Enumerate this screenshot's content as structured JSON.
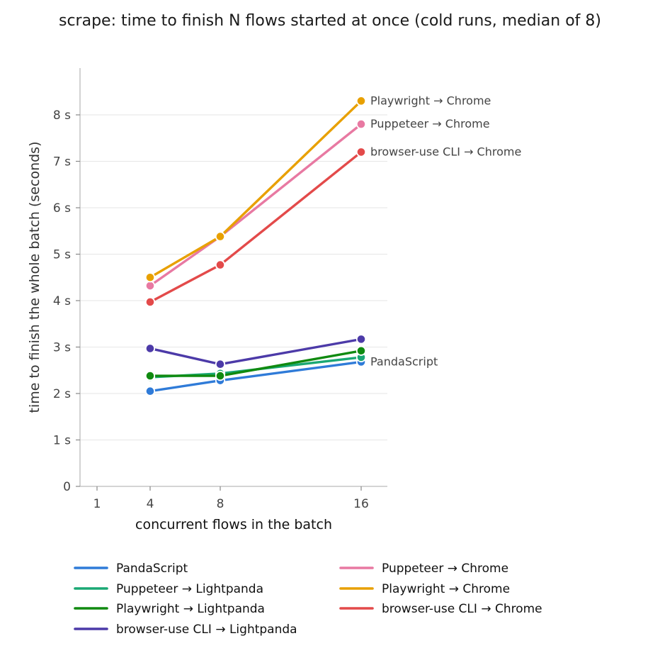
{
  "chart_data": {
    "type": "line",
    "title": "scrape: time to finish N flows started at once (cold runs, median of 8)",
    "xlabel": "concurrent flows in the batch",
    "ylabel": "time to finish the whole batch (seconds)",
    "x_ticks": [
      "1",
      "4",
      "8",
      "16"
    ],
    "y_ticks": [
      "0",
      "1 s",
      "2 s",
      "3 s",
      "4 s",
      "5 s",
      "6 s",
      "7 s",
      "8 s"
    ],
    "ylim": [
      0,
      9
    ],
    "legend_position": "bottom",
    "grid": "horizontal",
    "series": [
      {
        "name": "PandaScript",
        "color": "#2f7bd8",
        "x": [
          4,
          8,
          16
        ],
        "y": [
          2.05,
          2.28,
          2.68
        ],
        "end_label": "PandaScript"
      },
      {
        "name": "Puppeteer → Lightpanda",
        "color": "#1aa874",
        "x": [
          4,
          8,
          16
        ],
        "y": [
          2.35,
          2.43,
          2.78
        ],
        "end_label": ""
      },
      {
        "name": "Playwright → Lightpanda",
        "color": "#108a10",
        "x": [
          4,
          8,
          16
        ],
        "y": [
          2.38,
          2.38,
          2.92
        ],
        "end_label": ""
      },
      {
        "name": "browser-use CLI → Lightpanda",
        "color": "#4c3aa8",
        "x": [
          4,
          8,
          16
        ],
        "y": [
          2.97,
          2.63,
          3.17
        ],
        "end_label": ""
      },
      {
        "name": "Puppeteer → Chrome",
        "color": "#e879a2",
        "x": [
          4,
          8,
          16
        ],
        "y": [
          4.32,
          5.38,
          7.8
        ],
        "end_label": "Puppeteer → Chrome"
      },
      {
        "name": "Playwright → Chrome",
        "color": "#e8a000",
        "x": [
          4,
          8,
          16
        ],
        "y": [
          4.5,
          5.38,
          8.3
        ],
        "end_label": "Playwright → Chrome"
      },
      {
        "name": "browser-use CLI → Chrome",
        "color": "#e34a4a",
        "x": [
          4,
          8,
          16
        ],
        "y": [
          3.97,
          4.77,
          7.2
        ],
        "end_label": "browser-use CLI → Chrome"
      }
    ],
    "legend_columns": [
      [
        "PandaScript",
        "Puppeteer → Lightpanda",
        "Playwright → Lightpanda",
        "browser-use CLI → Lightpanda"
      ],
      [
        "Puppeteer → Chrome",
        "Playwright → Chrome",
        "browser-use CLI → Chrome"
      ]
    ]
  }
}
